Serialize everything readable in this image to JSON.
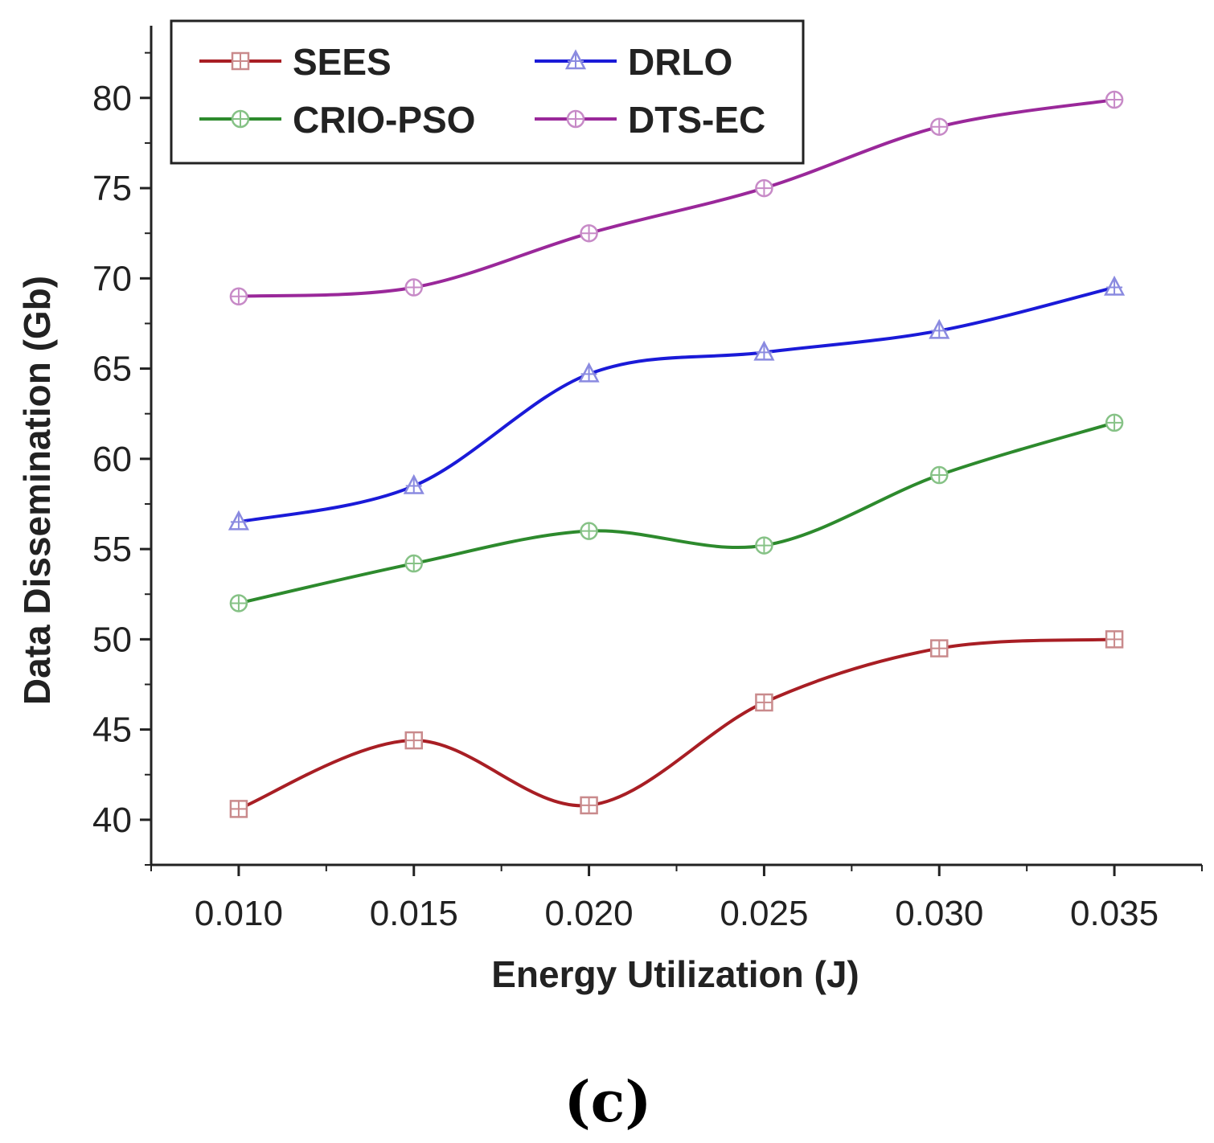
{
  "chart_data": {
    "type": "line",
    "title": "",
    "xlabel": "Energy Utilization (J)",
    "ylabel": "Data Dissemination (Gb)",
    "panel_label": "(c)",
    "x": [
      0.01,
      0.015,
      0.02,
      0.025,
      0.03,
      0.035
    ],
    "x_tick_labels": [
      "0.010",
      "0.015",
      "0.020",
      "0.025",
      "0.030",
      "0.035"
    ],
    "y_tick_values": [
      40,
      45,
      50,
      55,
      60,
      65,
      70,
      75,
      80
    ],
    "y_tick_labels": [
      "40",
      "45",
      "50",
      "55",
      "60",
      "65",
      "70",
      "75",
      "80"
    ],
    "xlim": [
      0.0075,
      0.0375
    ],
    "ylim": [
      37.5,
      84
    ],
    "grid": false,
    "legend_position": "top-left",
    "series": [
      {
        "name": "SEES",
        "values": [
          40.6,
          44.4,
          40.8,
          46.5,
          49.5,
          50.0
        ],
        "color": "#a81e24",
        "marker": "square-plus",
        "marker_color": "#c98a8c"
      },
      {
        "name": "DRLO",
        "values": [
          56.5,
          58.5,
          64.7,
          65.9,
          67.1,
          69.5
        ],
        "color": "#1a1ad8",
        "marker": "triangle-plus",
        "marker_color": "#8a8ae0"
      },
      {
        "name": "CRIO-PSO",
        "values": [
          52.0,
          54.2,
          56.0,
          55.2,
          59.1,
          62.0
        ],
        "color": "#2d8a2d",
        "marker": "circle-plus",
        "marker_color": "#86c286"
      },
      {
        "name": "DTS-EC",
        "values": [
          69.0,
          69.5,
          72.5,
          75.0,
          78.4,
          79.9
        ],
        "color": "#9a289a",
        "marker": "circle-plus",
        "marker_color": "#c78ac7"
      }
    ]
  }
}
